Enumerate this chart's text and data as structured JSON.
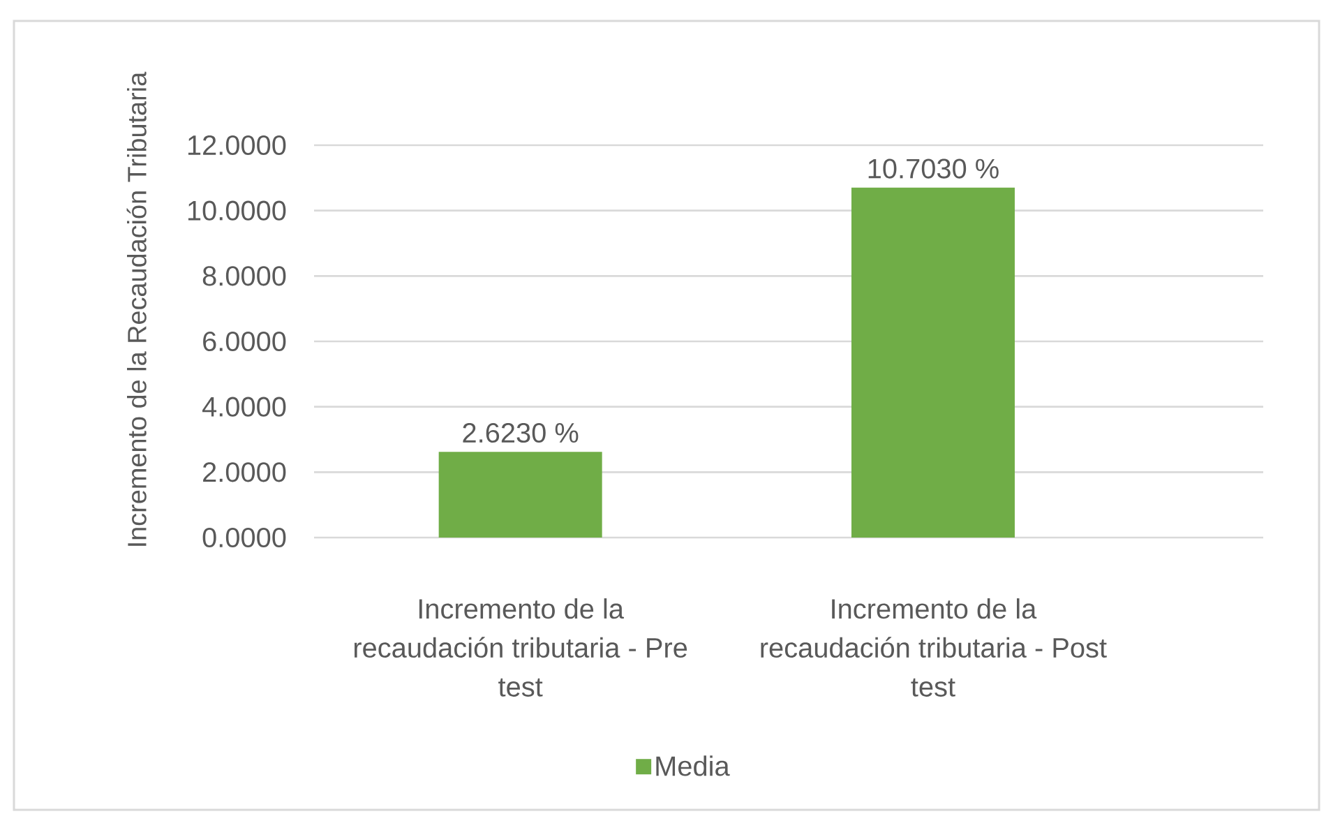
{
  "chart_data": {
    "type": "bar",
    "ylabel": "Incremento de la Recaudación Tributaria",
    "categories": [
      "Incremento de la recaudación tributaria - Pre test",
      "Incremento de la recaudación tributaria - Post test"
    ],
    "series": [
      {
        "name": "Media",
        "color": "#70ad47",
        "values": [
          2.623,
          10.703
        ],
        "value_labels": [
          "2.6230 %",
          "10.7030 %"
        ]
      }
    ],
    "ylim": [
      0,
      12
    ],
    "yticks": [
      {
        "value": 0,
        "label": "0.0000"
      },
      {
        "value": 2,
        "label": "2.0000"
      },
      {
        "value": 4,
        "label": "4.0000"
      },
      {
        "value": 6,
        "label": "6.0000"
      },
      {
        "value": 8,
        "label": "8.0000"
      },
      {
        "value": 10,
        "label": "10.0000"
      },
      {
        "value": 12,
        "label": "12.0000"
      }
    ],
    "grid": "y",
    "legend": "bottom"
  }
}
